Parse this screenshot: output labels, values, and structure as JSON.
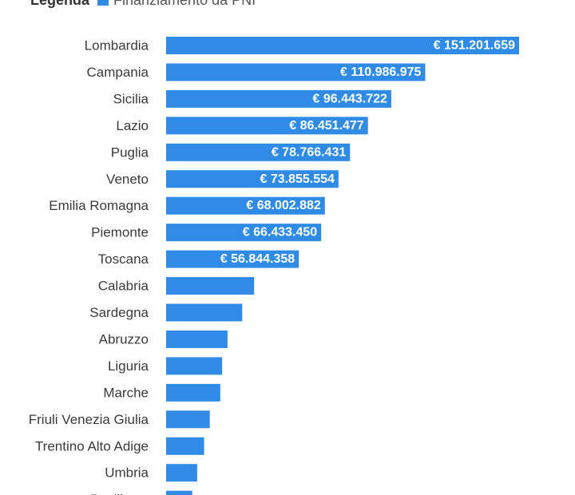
{
  "legend": {
    "title": "Legenda",
    "label": "Finanziamento da PNI",
    "color": "#2f8be6"
  },
  "chart_data": {
    "type": "bar",
    "orientation": "horizontal",
    "series": [
      {
        "name": "Finanziamento da PNI",
        "values": [
          151201659,
          110986975,
          96443722,
          86451477,
          78766431,
          73855554,
          68002882,
          66433450,
          56844358,
          37700000,
          32600000,
          26300000,
          24000000,
          23200000,
          18700000,
          16300000,
          13300000,
          11200000
        ]
      }
    ],
    "categories": [
      "Lombardia",
      "Campania",
      "Sicilia",
      "Lazio",
      "Puglia",
      "Veneto",
      "Emilia Romagna",
      "Piemonte",
      "Toscana",
      "Calabria",
      "Sardegna",
      "Abruzzo",
      "Liguria",
      "Marche",
      "Friuli Venezia Giulia",
      "Trentino Alto Adige",
      "Umbria",
      "Basilicata"
    ],
    "value_labels": [
      "€ 151.201.659",
      "€ 110.986.975",
      "€ 96.443.722",
      "€ 86.451.477",
      "€ 78.766.431",
      "€ 73.855.554",
      "€ 68.002.882",
      "€ 66.433.450",
      "€ 56.844.358",
      "",
      "",
      "",
      "",
      "",
      "",
      "",
      "",
      ""
    ],
    "xlim": [
      0,
      151201659
    ],
    "grid": false,
    "legend_position": "top-left",
    "bar_color": "#2f8be6"
  }
}
